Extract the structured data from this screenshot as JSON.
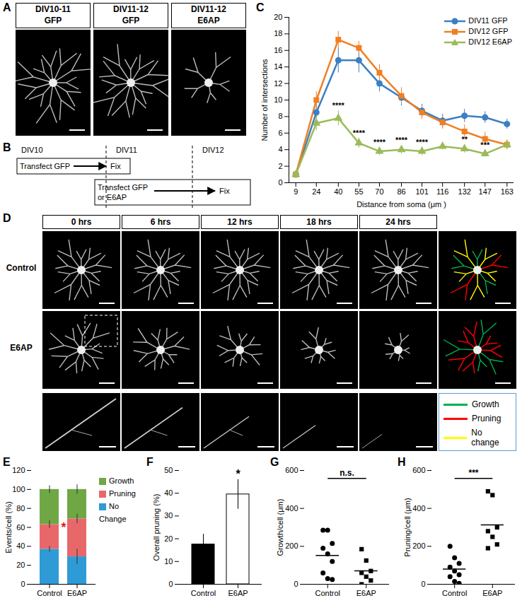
{
  "A": {
    "panel": "A",
    "images": [
      [
        "DIV10-11",
        "GFP"
      ],
      [
        "DIV11-12",
        "GFP"
      ],
      [
        "DIV11-12",
        "E6AP"
      ]
    ]
  },
  "B": {
    "panel": "B",
    "days": [
      "DIV10",
      "DIV11",
      "DIV12"
    ],
    "rows": [
      {
        "start": [
          "Transfect GFP"
        ],
        "end": "Fix"
      },
      {
        "start": [
          "Transfect GFP",
          "or E6AP"
        ],
        "end": "Fix"
      }
    ]
  },
  "D": {
    "panel": "D",
    "columns": [
      "0 hrs",
      "6 hrs",
      "12 hrs",
      "18 hrs",
      "24 hrs"
    ],
    "rows": [
      "Control",
      "E6AP"
    ],
    "legend": [
      {
        "name": "Growth",
        "color": "#00b050"
      },
      {
        "name": "Pruning",
        "color": "#ff0000"
      },
      {
        "name": "No change",
        "color": "#ffff00"
      }
    ]
  },
  "chart_data": [
    {
      "panel": "C",
      "type": "line",
      "xlabel": "Distance from soma (μm )",
      "ylabel": "Number of intersections",
      "x": [
        9,
        24,
        40,
        55,
        70,
        86,
        101,
        116,
        132,
        147,
        163
      ],
      "xlim": [
        4,
        168
      ],
      "xticks": [
        9,
        24,
        40,
        55,
        70,
        86,
        101,
        116,
        132,
        147,
        163
      ],
      "ylim": [
        0,
        20
      ],
      "yticks": [
        0,
        2,
        4,
        6,
        8,
        10,
        12,
        14,
        16,
        18,
        20
      ],
      "legend": "top-right",
      "series": [
        {
          "name": "DIV11 GFP",
          "color": "#3b7fc4",
          "marker": "circle",
          "values": [
            1,
            8.5,
            14.8,
            14.8,
            12,
            10.3,
            8.7,
            7.5,
            8.1,
            7.9,
            7.1
          ],
          "errors": [
            0.3,
            1,
            1.5,
            1.5,
            1,
            1,
            0.8,
            0.8,
            0.8,
            0.7,
            0.6
          ]
        },
        {
          "name": "DIV12 GFP",
          "color": "#f07f23",
          "marker": "square",
          "values": [
            1,
            10,
            17.3,
            16.3,
            13.3,
            10.5,
            8.5,
            7.3,
            6.2,
            5.3,
            4.6
          ],
          "errors": [
            0.2,
            1,
            1,
            0.8,
            1,
            1,
            0.8,
            0.8,
            0.8,
            0.8,
            0.6
          ]
        },
        {
          "name": "DIV12 E6AP",
          "color": "#9bbb59",
          "marker": "triangle",
          "values": [
            1,
            7.2,
            7.8,
            4.8,
            3.8,
            4,
            3.8,
            4.4,
            4.1,
            3.5,
            4.6
          ],
          "errors": [
            0.2,
            0.9,
            0.9,
            0.6,
            0.5,
            0.5,
            0.5,
            0.4,
            0.5,
            0.4,
            0.5
          ]
        }
      ],
      "annotations": [
        {
          "series": "DIV12 E6AP",
          "x": 40,
          "text": "****"
        },
        {
          "series": "DIV12 E6AP",
          "x": 55,
          "text": "****"
        },
        {
          "series": "DIV12 E6AP",
          "x": 70,
          "text": "****"
        },
        {
          "series": "DIV12 E6AP",
          "x": 86,
          "text": "****"
        },
        {
          "series": "DIV12 E6AP",
          "x": 101,
          "text": "****"
        },
        {
          "series": "DIV12 E6AP",
          "x": 132,
          "text": "**"
        },
        {
          "series": "DIV12 E6AP",
          "x": 147,
          "text": "***"
        }
      ]
    },
    {
      "panel": "E",
      "type": "bar",
      "stacked": true,
      "categories": [
        "Control",
        "E6AP"
      ],
      "ylabel": "Events/cell (%)",
      "ylim": [
        0,
        120
      ],
      "yticks": [
        0,
        20,
        40,
        60,
        80,
        100,
        120
      ],
      "legend": "right",
      "series": [
        {
          "name": "No Change",
          "color": "#2e9bd6",
          "values": [
            37,
            29
          ],
          "errors": [
            3,
            8
          ]
        },
        {
          "name": "Pruning",
          "color": "#e8686a",
          "values": [
            26,
            40
          ],
          "errors": [
            4,
            5
          ]
        },
        {
          "name": "Growth",
          "color": "#70a745",
          "values": [
            37,
            31
          ],
          "errors": [
            4,
            5
          ]
        }
      ],
      "annotations": [
        {
          "text": "*",
          "color": "#e8191b"
        }
      ]
    },
    {
      "panel": "F",
      "type": "bar",
      "categories": [
        "Control",
        "E6AP"
      ],
      "values": [
        17.5,
        39.5
      ],
      "errors": [
        4.5,
        6.5
      ],
      "colors": [
        "#000000",
        "#ffffff"
      ],
      "ylabel": "Overall pruning (%)",
      "ylim": [
        0,
        50
      ],
      "yticks": [
        0,
        10,
        20,
        30,
        40,
        50
      ],
      "annotations": [
        {
          "category": "E6AP",
          "text": "*"
        }
      ]
    },
    {
      "panel": "G",
      "type": "scatter",
      "ylabel": "Growth/cell (μm)",
      "ylim": [
        0,
        600
      ],
      "yticks": [
        0,
        200,
        400,
        600
      ],
      "series": [
        {
          "name": "Control",
          "marker": "circle",
          "color": "#000000",
          "values": [
            285,
            285,
            215,
            190,
            160,
            120,
            60,
            30,
            25
          ],
          "mean": 152
        },
        {
          "name": "E6AP",
          "marker": "square",
          "color": "#000000",
          "values": [
            185,
            125,
            70,
            60,
            40,
            20,
            0
          ],
          "mean": 71
        }
      ],
      "annotations": [
        {
          "text": "n.s."
        }
      ]
    },
    {
      "panel": "H",
      "type": "scatter",
      "ylabel": "Pruning/cell (μm)",
      "ylim": [
        0,
        600
      ],
      "yticks": [
        0,
        200,
        400,
        600
      ],
      "series": [
        {
          "name": "Control",
          "marker": "circle",
          "color": "#000000",
          "values": [
            200,
            140,
            110,
            90,
            70,
            50,
            40,
            15,
            5
          ],
          "mean": 80
        },
        {
          "name": "E6AP",
          "marker": "square",
          "color": "#000000",
          "values": [
            490,
            470,
            300,
            280,
            250,
            210,
            190
          ],
          "mean": 313
        }
      ],
      "annotations": [
        {
          "text": "***"
        }
      ]
    }
  ]
}
